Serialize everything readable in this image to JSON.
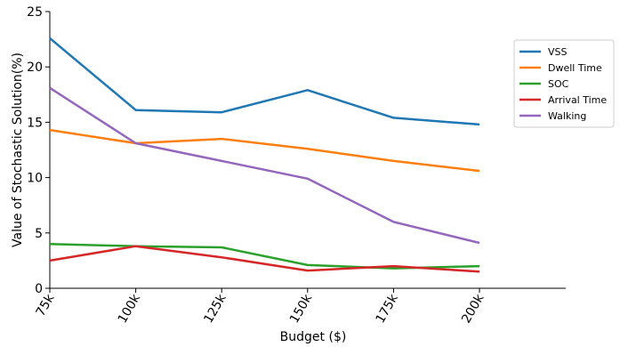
{
  "chart_data": {
    "type": "line",
    "xlabel": "Budget ($)",
    "ylabel": "Value of Stochastic Solution(%)",
    "categories": [
      "75k",
      "100k",
      "125k",
      "150k",
      "175k",
      "200k"
    ],
    "ylim": [
      0,
      25
    ],
    "yticks": [
      0,
      5,
      10,
      15,
      20,
      25
    ],
    "grid": false,
    "legend_position": "right",
    "series": [
      {
        "name": "VSS",
        "color": "#1f77b4",
        "values": [
          22.6,
          16.1,
          15.9,
          17.9,
          15.4,
          14.8
        ]
      },
      {
        "name": "Dwell Time",
        "color": "#ff7f0e",
        "values": [
          14.3,
          13.1,
          13.5,
          12.6,
          11.5,
          10.6
        ]
      },
      {
        "name": "SOC",
        "color": "#2ca02c",
        "values": [
          4.0,
          3.8,
          3.7,
          2.1,
          1.8,
          2.0
        ]
      },
      {
        "name": "Arrival Time",
        "color": "#d62728",
        "values": [
          2.5,
          3.8,
          2.8,
          1.6,
          2.0,
          1.5
        ]
      },
      {
        "name": "Walking",
        "color": "#9467bd",
        "values": [
          18.1,
          13.1,
          11.5,
          9.9,
          6.0,
          4.1
        ]
      }
    ]
  }
}
